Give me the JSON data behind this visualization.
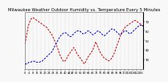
{
  "title": "Milwaukee Weather Outdoor Humidity vs. Temperature Every 5 Minutes",
  "background_color": "#f8f8f8",
  "grid_color": "#bbbbbb",
  "red_line_color": "#cc0000",
  "blue_line_color": "#0000cc",
  "ylim_left": [
    20,
    100
  ],
  "ylim_right": [
    20,
    80
  ],
  "yticks_right": [
    30,
    40,
    50,
    60,
    70
  ],
  "title_fontsize": 3.8,
  "tick_fontsize": 2.8,
  "red_data": [
    55,
    62,
    70,
    78,
    83,
    87,
    90,
    91,
    92,
    91,
    90,
    89,
    88,
    87,
    86,
    85,
    84,
    83,
    82,
    81,
    80,
    79,
    78,
    76,
    74,
    72,
    70,
    68,
    65,
    62,
    59,
    56,
    52,
    48,
    44,
    40,
    37,
    34,
    32,
    30,
    31,
    32,
    35,
    38,
    40,
    42,
    44,
    46,
    48,
    50,
    48,
    45,
    42,
    40,
    38,
    36,
    34,
    32,
    30,
    28,
    27,
    30,
    33,
    36,
    38,
    40,
    42,
    44,
    46,
    50,
    54,
    58,
    55,
    52,
    48,
    45,
    42,
    40,
    38,
    36,
    35,
    34,
    33,
    32,
    31,
    32,
    33,
    35,
    37,
    40,
    43,
    47,
    51,
    55,
    59,
    63,
    67,
    70,
    73,
    75,
    77,
    79,
    80,
    81,
    82,
    83,
    84,
    85,
    86,
    87,
    88,
    88,
    87,
    86,
    85,
    84,
    83,
    82,
    81,
    80
  ],
  "blue_data": [
    25,
    25,
    26,
    26,
    27,
    27,
    27,
    28,
    28,
    28,
    28,
    27,
    27,
    27,
    27,
    27,
    28,
    28,
    29,
    30,
    31,
    32,
    33,
    34,
    35,
    36,
    37,
    38,
    40,
    42,
    44,
    46,
    48,
    50,
    52,
    54,
    55,
    56,
    57,
    58,
    58,
    58,
    57,
    56,
    55,
    54,
    54,
    55,
    56,
    57,
    58,
    59,
    60,
    60,
    60,
    60,
    59,
    58,
    57,
    57,
    57,
    58,
    59,
    60,
    60,
    59,
    58,
    57,
    56,
    56,
    57,
    58,
    59,
    60,
    60,
    59,
    58,
    57,
    56,
    55,
    55,
    56,
    57,
    58,
    59,
    60,
    61,
    62,
    62,
    62,
    61,
    60,
    59,
    58,
    57,
    56,
    56,
    57,
    58,
    59,
    60,
    60,
    60,
    59,
    58,
    57,
    57,
    58,
    59,
    60,
    61,
    62,
    63,
    64,
    65,
    66,
    66,
    66,
    65,
    65
  ]
}
